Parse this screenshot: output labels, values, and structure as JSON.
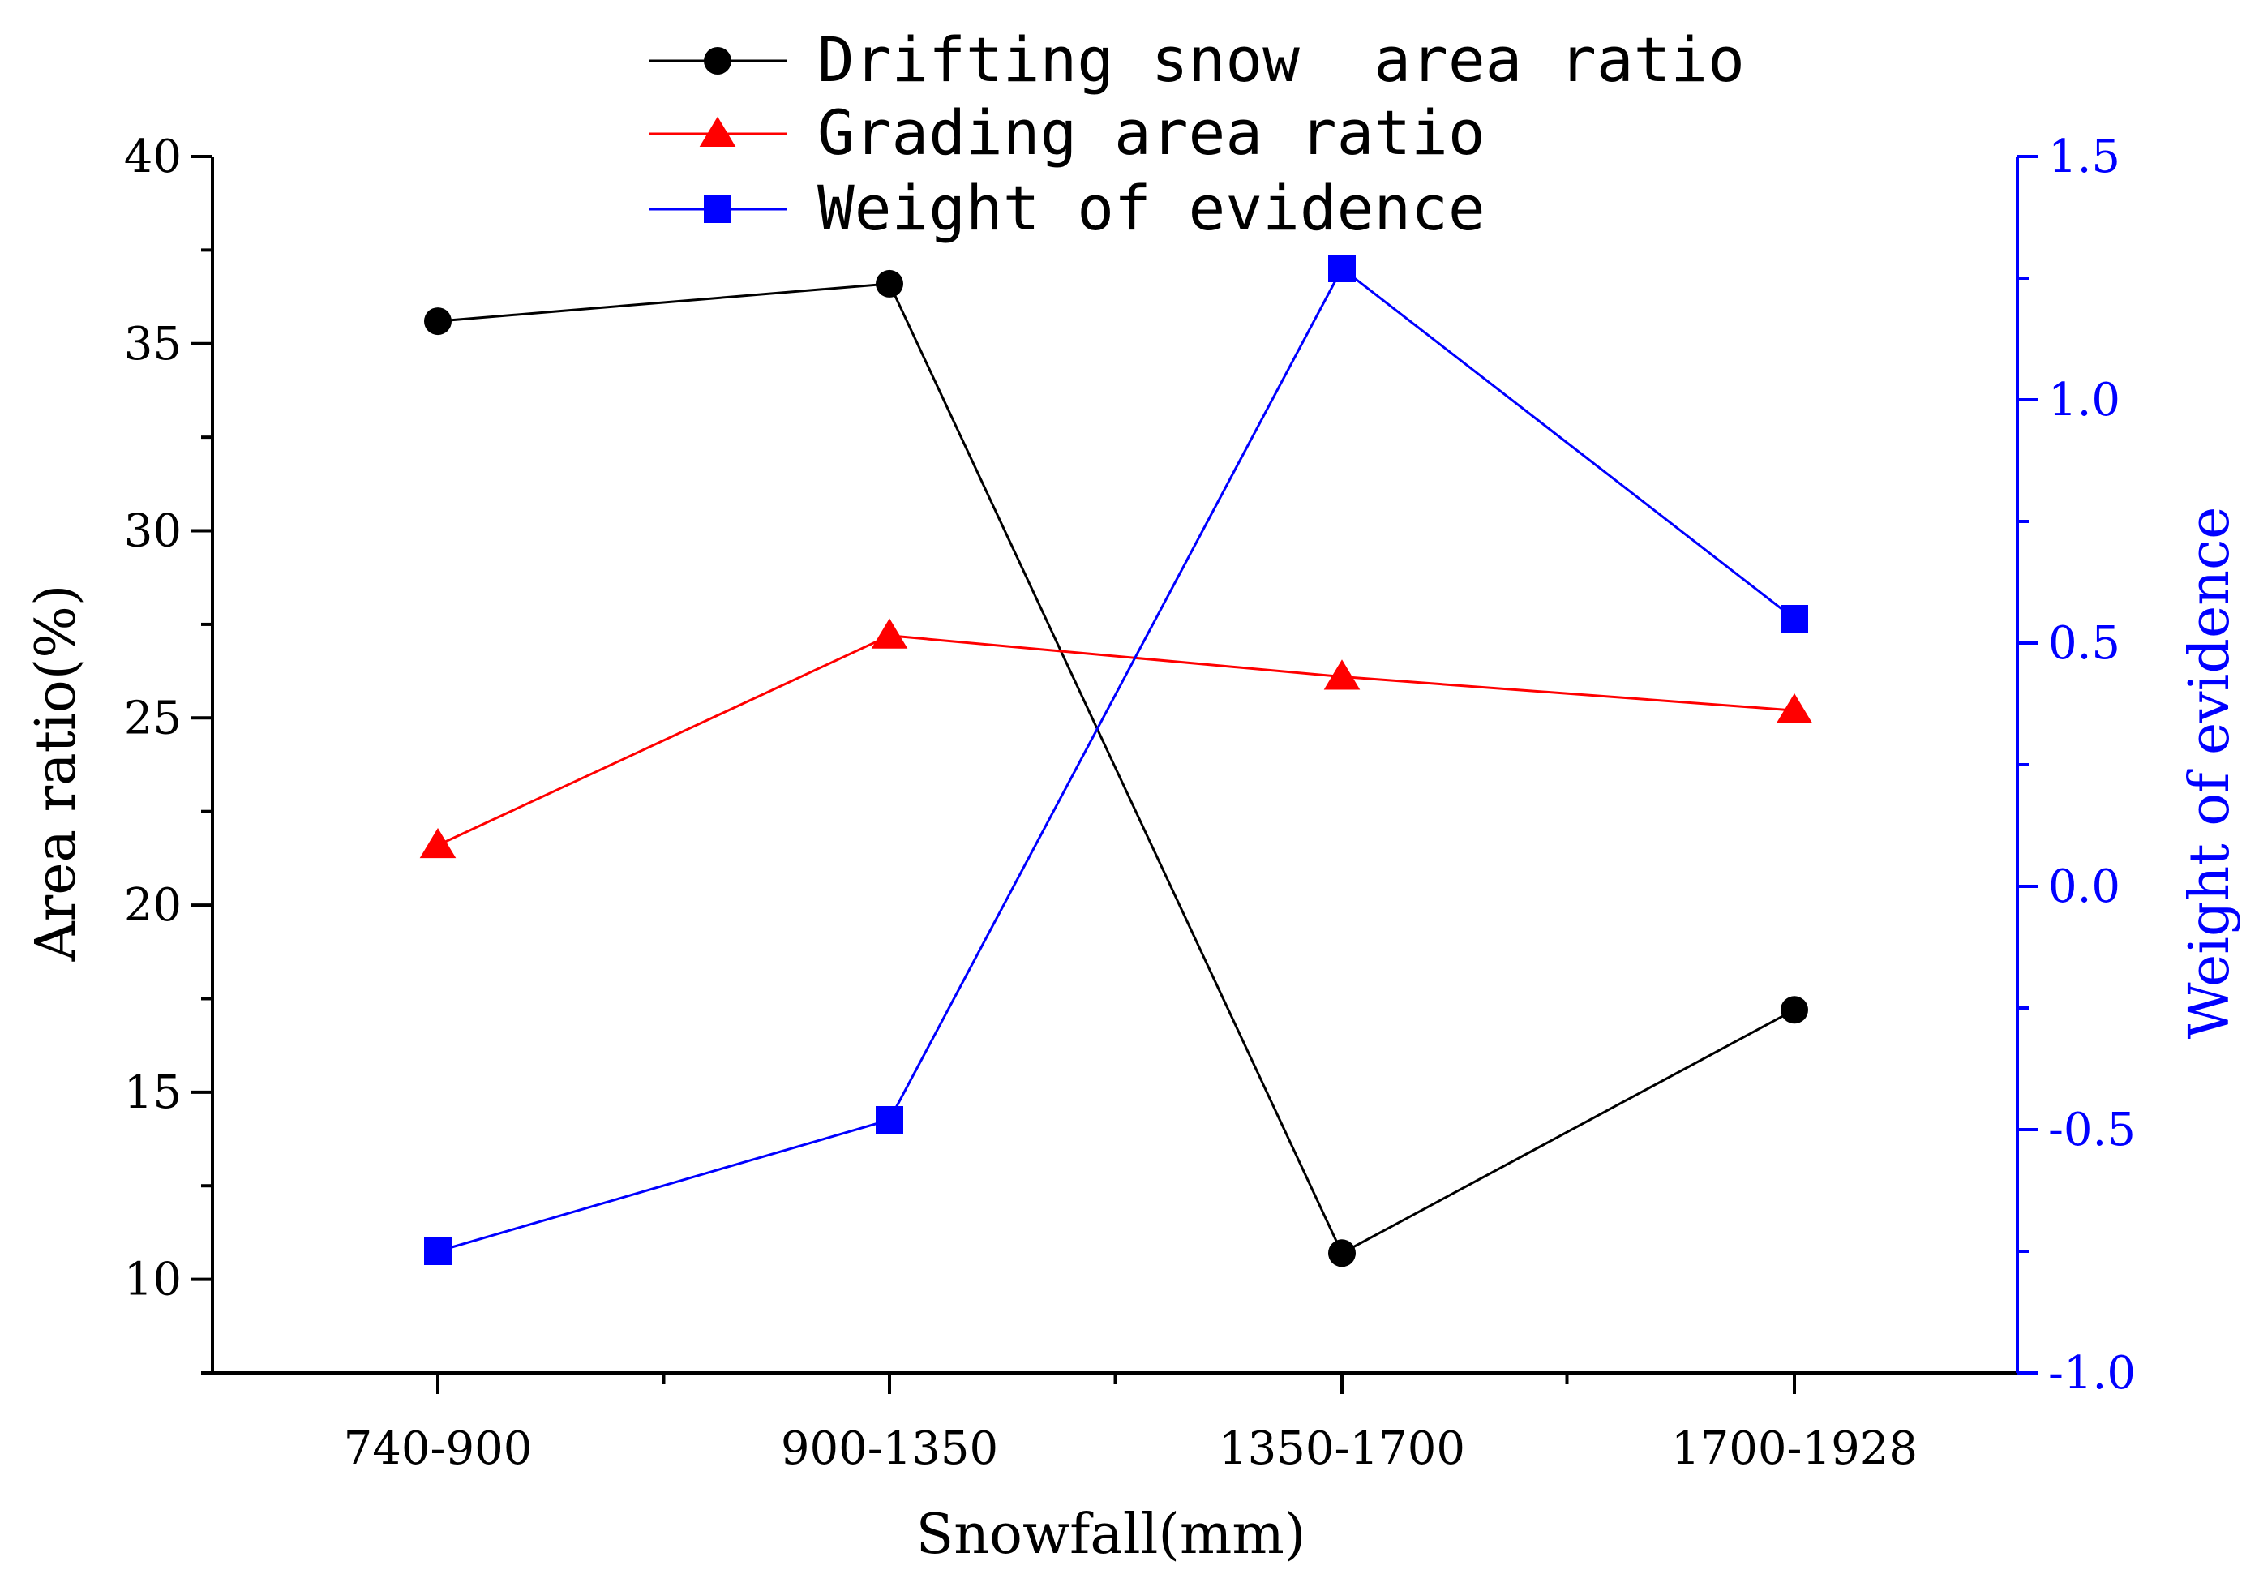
{
  "chart_data": {
    "type": "line",
    "categories": [
      "740-900",
      "900-1350",
      "1350-1700",
      "1700-1928"
    ],
    "xlabel": "Snowfall(mm)",
    "ylabel": "Area ratio(%)",
    "ylabel_right": "Weight of evidence",
    "ylim": [
      7.5,
      40
    ],
    "ylim_right": [
      -1.0,
      1.5
    ],
    "yticks": [
      10,
      15,
      20,
      25,
      30,
      35,
      40
    ],
    "yticks_right": [
      "-1.0",
      "-0.5",
      "0.0",
      "0.5",
      "1.0",
      "1.5"
    ],
    "grid": false,
    "legend_position": "top-center",
    "series": [
      {
        "name": "Drifting snow  area ratio",
        "axis": "left",
        "marker": "circle",
        "color": "#000000",
        "values": [
          35.6,
          36.6,
          10.7,
          17.2
        ]
      },
      {
        "name": "Grading area ratio",
        "axis": "left",
        "marker": "triangle",
        "color": "#ff0000",
        "values": [
          21.6,
          27.2,
          26.1,
          25.2
        ]
      },
      {
        "name": "Weight of evidence",
        "axis": "right",
        "marker": "square",
        "color": "#0000ff",
        "values": [
          -0.75,
          -0.48,
          1.27,
          0.55
        ]
      }
    ],
    "colors": {
      "left_axis": "#000000",
      "right_axis": "#0000ff"
    }
  }
}
